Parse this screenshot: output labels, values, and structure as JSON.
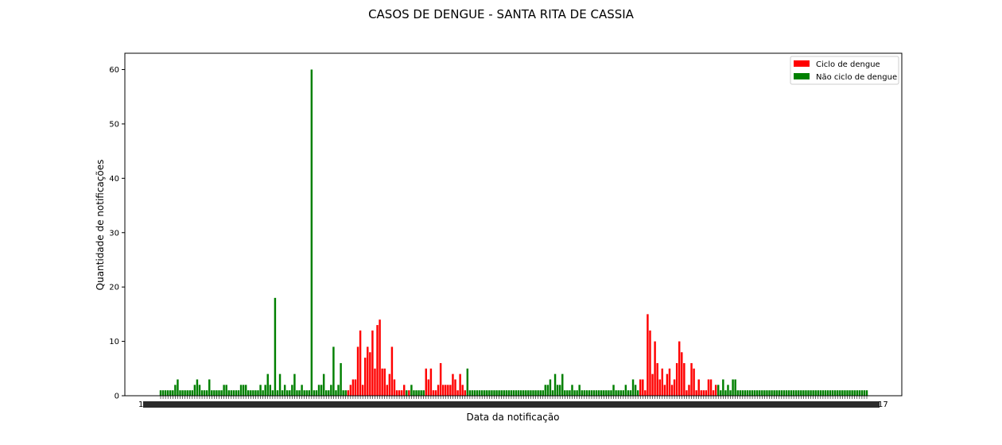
{
  "chart_data": {
    "type": "bar",
    "title": "CASOS DE DENGUE - SANTA RITA DE CASSIA",
    "xlabel": "Data da notificação",
    "ylabel": "Quantidade de notificações",
    "ylim": [
      0,
      63
    ],
    "yticks": [
      0,
      10,
      20,
      30,
      40,
      50,
      60
    ],
    "grid": false,
    "legend_position": "top-right",
    "x_tick_first": "1",
    "x_tick_last": "17",
    "series": [
      {
        "name": "Ciclo de dengue",
        "color": "#ff0000",
        "values": [
          1,
          2,
          3,
          3,
          9,
          12,
          2,
          7,
          9,
          8,
          12,
          5,
          13,
          14,
          5,
          5,
          2,
          4,
          9,
          3,
          1,
          1,
          1,
          2,
          1,
          5,
          3,
          5,
          1,
          1,
          2,
          6,
          2,
          2,
          2,
          2,
          4,
          3,
          1,
          4,
          2,
          1,
          3,
          3,
          1,
          15,
          12,
          4,
          10,
          6,
          3,
          5,
          2,
          4,
          5,
          2,
          3,
          6,
          10,
          8,
          6,
          1,
          2,
          6,
          5,
          1,
          3,
          1,
          1,
          1,
          3,
          3,
          1,
          2
        ]
      },
      {
        "name": "Não ciclo de dengue",
        "color": "#008000",
        "values": [
          1,
          1,
          1,
          1,
          1,
          1,
          2,
          3,
          1,
          1,
          1,
          1,
          1,
          1,
          2,
          3,
          2,
          1,
          1,
          1,
          3,
          1,
          1,
          1,
          1,
          1,
          2,
          2,
          1,
          1,
          1,
          1,
          1,
          2,
          2,
          2,
          1,
          1,
          1,
          1,
          1,
          2,
          1,
          2,
          4,
          2,
          1,
          18,
          1,
          4,
          1,
          2,
          1,
          1,
          2,
          4,
          1,
          1,
          2,
          1,
          1,
          1,
          60,
          1,
          1,
          2,
          2,
          4,
          1,
          1,
          2,
          9,
          1,
          2,
          6,
          1,
          1,
          1,
          2,
          1,
          1,
          1,
          1,
          1,
          5,
          1,
          1,
          1,
          1,
          1,
          1,
          1,
          1,
          1,
          1,
          1,
          1,
          1,
          1,
          1,
          1,
          1,
          1,
          1,
          1,
          1,
          1,
          1,
          1,
          1,
          1,
          1,
          1,
          1,
          1,
          1,
          2,
          2,
          3,
          1,
          4,
          2,
          2,
          4,
          1,
          1,
          1,
          2,
          1,
          1,
          2,
          1,
          1,
          1,
          1,
          1,
          1,
          1,
          1,
          1,
          1,
          1,
          1,
          1,
          2,
          1,
          1,
          1,
          1,
          2,
          1,
          1,
          3,
          2,
          1,
          2,
          1,
          3,
          1,
          2,
          1,
          3,
          3,
          1,
          1,
          1,
          1,
          1,
          1,
          1,
          1,
          1,
          1,
          1,
          1,
          1,
          1,
          1,
          1,
          1,
          1,
          1,
          1,
          1,
          1,
          1,
          1,
          1,
          1,
          1,
          1,
          1,
          1,
          1,
          1,
          1,
          1,
          1,
          1,
          1,
          1,
          1,
          1,
          1,
          1,
          1,
          1,
          1,
          1,
          1,
          1,
          1,
          1,
          1,
          1,
          1,
          1,
          1,
          1,
          1,
          1,
          1,
          2,
          1,
          1,
          1,
          1,
          1
        ]
      }
    ],
    "bar_sequence": "GGGGGGGGGGGGGGGGGGGGGGGGGGGGGGGGGGGGGGGGGGGGGGGGGGGGGGGGGGGGGGGGGGGGGGGGGGGGGRRRRRRRRRRRRRRRRRRRRRRRRGRGGGGGGRRRRRRRRRRRRRRRRRGGGGGGGGGGGGGGGGGGGGGGGGGGGGGGGGGGGGGGGGGGGGGGGGGGGGGGGGGGGGGGGGGGGGGGGRRRRRRRRRRRRRRRRRRRRRRRRRRRRRRRRGGGGGGGGGGGGGGGGGGGGGGGGGGGGGGGGGGGGGGGGGGGGGGGGGGGGGGGGGGGGGG"
  }
}
